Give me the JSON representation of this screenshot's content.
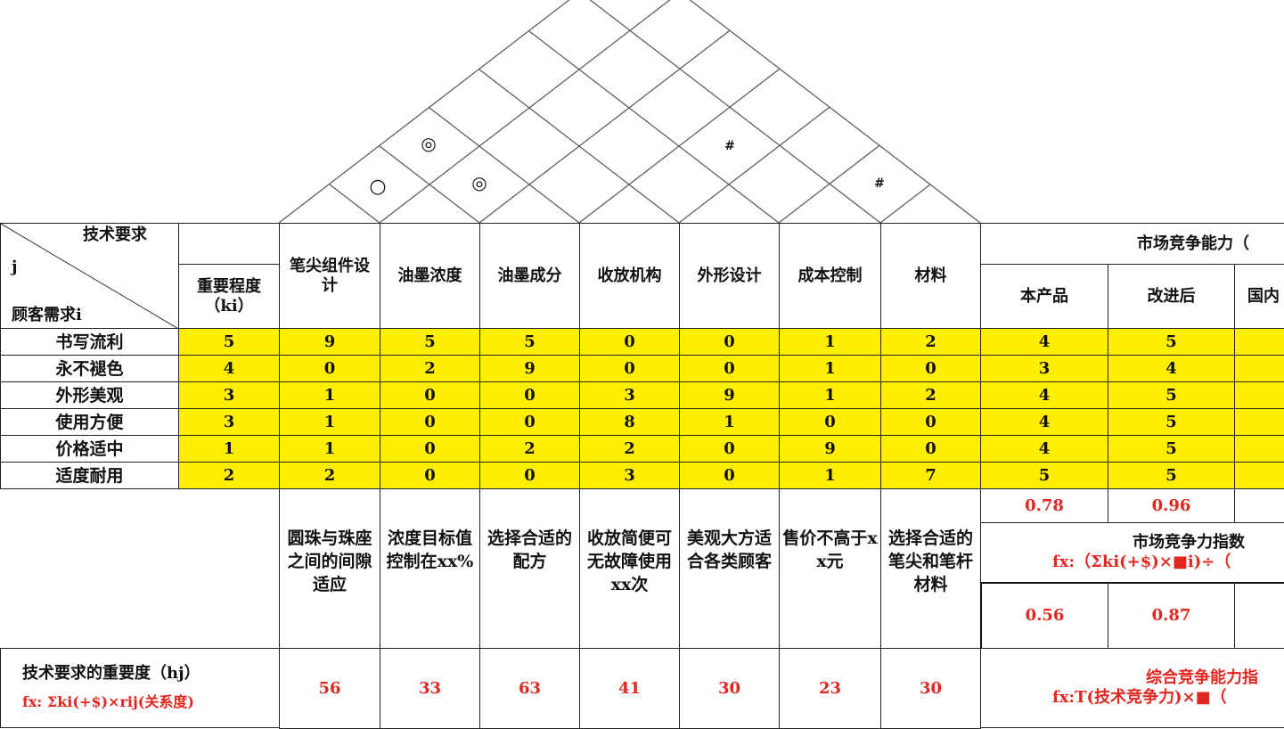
{
  "roof": {
    "symbols": [
      {
        "glyph": "○",
        "name": "weak-positive-correlation-icon",
        "pair": [
          "笔尖组件设计",
          "油墨浓度"
        ]
      },
      {
        "glyph": "◎",
        "name": "strong-positive-correlation-icon",
        "pair": [
          "笔尖组件设计",
          "油墨成分"
        ]
      },
      {
        "glyph": "◎",
        "name": "strong-positive-correlation-icon",
        "pair": [
          "油墨浓度",
          "油墨成分"
        ]
      },
      {
        "glyph": "#",
        "name": "negative-correlation-icon",
        "pair": [
          "外形设计",
          "材料"
        ]
      },
      {
        "glyph": "#",
        "name": "negative-correlation-icon",
        "pair": [
          "成本控制",
          "材料"
        ]
      }
    ]
  },
  "header": {
    "tech_req_label": "技术要求",
    "j_label": "j",
    "customer_need_label": "顾客需求i",
    "importance_label": "重要程度（ki）",
    "tech_columns": [
      "笔尖组件设计",
      "油墨浓度",
      "油墨成分",
      "收放机构",
      "外形设计",
      "成本控制",
      "材料"
    ],
    "market_title": "市场竞争能力（",
    "market_columns": [
      "本产品",
      "改进后",
      "国内"
    ]
  },
  "rows": [
    {
      "need": "书写流利",
      "importance": "5",
      "relations": [
        "9",
        "5",
        "5",
        "0",
        "0",
        "1",
        "2"
      ],
      "market": [
        "4",
        "5"
      ]
    },
    {
      "need": "永不褪色",
      "importance": "4",
      "relations": [
        "0",
        "2",
        "9",
        "0",
        "0",
        "1",
        "0"
      ],
      "market": [
        "3",
        "4"
      ]
    },
    {
      "need": "外形美观",
      "importance": "3",
      "relations": [
        "1",
        "0",
        "0",
        "3",
        "9",
        "1",
        "2"
      ],
      "market": [
        "4",
        "5"
      ]
    },
    {
      "need": "使用方便",
      "importance": "3",
      "relations": [
        "1",
        "0",
        "0",
        "8",
        "1",
        "0",
        "0"
      ],
      "market": [
        "4",
        "5"
      ]
    },
    {
      "need": "价格适中",
      "importance": "1",
      "relations": [
        "1",
        "0",
        "2",
        "2",
        "0",
        "9",
        "0"
      ],
      "market": [
        "4",
        "5"
      ]
    },
    {
      "need": "适度耐用",
      "importance": "2",
      "relations": [
        "2",
        "0",
        "0",
        "3",
        "0",
        "1",
        "7"
      ],
      "market": [
        "5",
        "5"
      ]
    }
  ],
  "market_scores": [
    "0.78",
    "0.96"
  ],
  "specs": [
    "圆珠与珠座之间的间隙适应",
    "浓度目标值控制在xx%",
    "选择合适的配方",
    "收放简便可无故障使用xx次",
    "美观大方适合各类顾客",
    "售价不高于xx元",
    "选择合适的笔尖和笔杆材料"
  ],
  "market_index": {
    "title": "市场竞争力指数",
    "formula": "fx:（Σki(+$)×■i)÷（",
    "values": [
      "0.56",
      "0.87"
    ]
  },
  "tech_importance": {
    "label": "技术要求的重要度（hj）",
    "formula": "fx: Σki(+$)×rij(关系度)",
    "values": [
      "56",
      "33",
      "63",
      "41",
      "30",
      "23",
      "30"
    ]
  },
  "composite": {
    "title": "综合竞争能力指",
    "formula": "fx:T(技术竞争力)×■（"
  },
  "colors": {
    "highlight": "#ffee00",
    "formula_red": "#e3261f"
  }
}
